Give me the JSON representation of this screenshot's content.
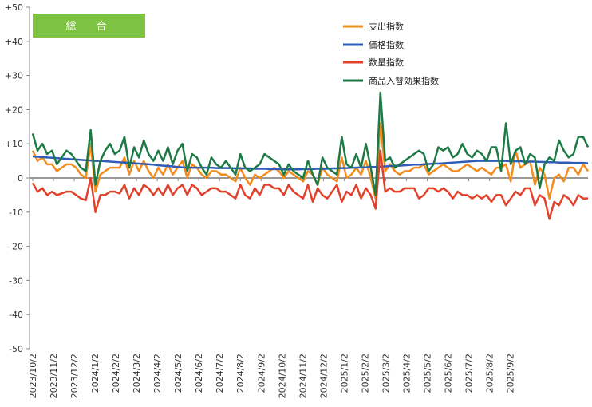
{
  "colors": {
    "expenditure": "#F28C1C",
    "price": "#2E5CB8",
    "quantity": "#E2412B",
    "substitution": "#1E7A45",
    "badge": "#7DC242",
    "axis": "#888888",
    "zero_line": "#333333"
  },
  "badge": {
    "label": "総　合"
  },
  "legend": {
    "expenditure": "支出指数",
    "price": "価格指数",
    "quantity": "数量指数",
    "substitution": "商品入替効果指数"
  },
  "chart_data": {
    "type": "line",
    "title": "",
    "xlabel": "",
    "ylabel": "",
    "ylim": [
      -50,
      50
    ],
    "y_ticks": [
      "+50",
      "+40",
      "+30",
      "+20",
      "+10",
      "0",
      "-10",
      "-20",
      "-30",
      "-40",
      "-50"
    ],
    "x_tick_labels": [
      "2023/10/2",
      "2023/11/2",
      "2023/12/2",
      "2024/1/2",
      "2024/2/2",
      "2024/3/2",
      "2024/4/2",
      "2024/5/2",
      "2024/6/2",
      "2024/7/2",
      "2024/8/2",
      "2024/9/2",
      "2024/10/2",
      "2024/11/2",
      "2024/12/2",
      "2025/1/2",
      "2025/2/2",
      "2025/3/2",
      "2025/4/2",
      "2025/5/2",
      "2025/6/2",
      "2025/7/2",
      "2025/8/2",
      "2025/9/2"
    ],
    "points_per_month": 4.3,
    "grid": false,
    "legend_position": "top-right",
    "series": [
      {
        "key": "expenditure",
        "name": "支出指数",
        "values": [
          8,
          5,
          6,
          4,
          4,
          2,
          3,
          4,
          4,
          3,
          1,
          0,
          10,
          -4,
          1,
          2,
          3,
          3,
          3,
          6,
          1,
          5,
          2,
          5,
          2,
          0,
          3,
          1,
          4,
          1,
          3,
          5,
          0,
          4,
          3,
          1,
          0,
          2,
          2,
          1,
          1,
          0,
          -1,
          3,
          0,
          -2,
          1,
          0,
          1,
          2,
          3,
          2,
          0,
          2,
          1,
          0,
          -1,
          2,
          1,
          -2,
          3,
          1,
          0,
          -1,
          6,
          0,
          1,
          3,
          1,
          5,
          0,
          -6,
          16,
          2,
          4,
          2,
          1,
          2,
          2,
          3,
          3,
          4,
          1,
          2,
          3,
          4,
          3,
          2,
          2,
          3,
          4,
          3,
          2,
          3,
          2,
          1,
          3,
          3,
          4,
          -1,
          8,
          3,
          4,
          5,
          -2,
          3,
          1,
          -6,
          0,
          1,
          -1,
          3,
          3,
          1,
          4,
          2
        ]
      },
      {
        "key": "price",
        "name": "価格指数",
        "values": [
          6.3,
          6.2,
          6.1,
          6.0,
          5.9,
          5.8,
          5.7,
          5.6,
          5.5,
          5.4,
          5.3,
          5.2,
          5.1,
          5.0,
          5.0,
          4.9,
          4.8,
          4.7,
          4.6,
          4.5,
          4.4,
          4.3,
          4.2,
          4.1,
          4.0,
          3.9,
          3.7,
          3.6,
          3.5,
          3.4,
          3.2,
          3.1,
          3.0,
          3.0,
          3.0,
          3.0,
          3.0,
          3.0,
          2.9,
          2.9,
          2.9,
          2.9,
          2.8,
          2.8,
          2.8,
          2.8,
          2.7,
          2.7,
          2.7,
          2.6,
          2.6,
          2.6,
          2.5,
          2.5,
          2.5,
          2.5,
          2.6,
          2.6,
          2.6,
          2.7,
          2.7,
          2.7,
          2.8,
          2.8,
          2.9,
          2.9,
          3.0,
          3.0,
          3.1,
          3.1,
          3.2,
          3.2,
          3.3,
          3.4,
          3.5,
          3.6,
          3.6,
          3.7,
          3.8,
          3.9,
          3.9,
          4.0,
          4.1,
          4.2,
          4.2,
          4.3,
          4.4,
          4.5,
          4.6,
          4.7,
          4.8,
          4.9,
          5.0,
          5.0,
          5.0,
          5.0,
          5.0,
          5.0,
          5.0,
          4.9,
          4.9,
          4.9,
          4.8,
          4.8,
          4.8,
          4.7,
          4.7,
          4.6,
          4.6,
          4.5,
          4.5,
          4.5,
          4.4,
          4.4,
          4.4,
          4.3
        ]
      },
      {
        "key": "quantity",
        "name": "数量指数",
        "values": [
          -1.5,
          -4,
          -3,
          -5,
          -4,
          -5,
          -4.5,
          -4,
          -4,
          -5,
          -6,
          -6.5,
          0,
          -10,
          -5,
          -5,
          -4,
          -4,
          -4.5,
          -2,
          -6,
          -3,
          -5,
          -2,
          -3,
          -5,
          -3,
          -5,
          -2,
          -5,
          -3,
          -2,
          -5,
          -2,
          -3,
          -5,
          -4,
          -3,
          -3,
          -4,
          -4,
          -5,
          -6,
          -2,
          -5,
          -6,
          -3,
          -5,
          -2,
          -2,
          -3,
          -3,
          -5,
          -2,
          -4,
          -5,
          -6,
          -2,
          -7,
          -3,
          -5,
          -6,
          -4,
          -2,
          -7,
          -4,
          -5,
          -2,
          -6,
          -3,
          -5,
          -9,
          8,
          -4,
          -3,
          -4,
          -4,
          -3,
          -3,
          -3,
          -6,
          -5,
          -3,
          -3,
          -4,
          -3,
          -4,
          -6,
          -4,
          -5,
          -5,
          -6,
          -5,
          -6,
          -5,
          -7,
          -5,
          -5,
          -8,
          -6,
          -4,
          -5,
          -3,
          -3,
          -8,
          -5,
          -6,
          -12,
          -7,
          -8,
          -5,
          -6,
          -8,
          -5,
          -6,
          -6
        ]
      },
      {
        "key": "substitution",
        "name": "商品入替効果指数",
        "values": [
          13,
          8,
          10,
          7,
          8,
          4,
          6,
          8,
          7,
          5,
          3,
          2,
          14,
          -2,
          5,
          8,
          10,
          7,
          8,
          12,
          3,
          9,
          6,
          11,
          7,
          5,
          8,
          5,
          9,
          4,
          8,
          10,
          2,
          7,
          6,
          3,
          1,
          6,
          4,
          3,
          5,
          3,
          1,
          7,
          3,
          2,
          3,
          4,
          7,
          6,
          5,
          4,
          1,
          4,
          2,
          1,
          0,
          5,
          1,
          -2,
          6,
          3,
          2,
          1,
          12,
          4,
          3,
          7,
          3,
          10,
          3,
          -5,
          25,
          5,
          6,
          3,
          4,
          5,
          6,
          7,
          8,
          7,
          2,
          4,
          9,
          8,
          9,
          6,
          7,
          10,
          7,
          6,
          8,
          7,
          5,
          9,
          9,
          2,
          16,
          4,
          8,
          9,
          4,
          7,
          6,
          -3,
          4,
          6,
          5,
          11,
          8,
          6,
          7,
          12,
          12,
          9
        ]
      }
    ]
  }
}
